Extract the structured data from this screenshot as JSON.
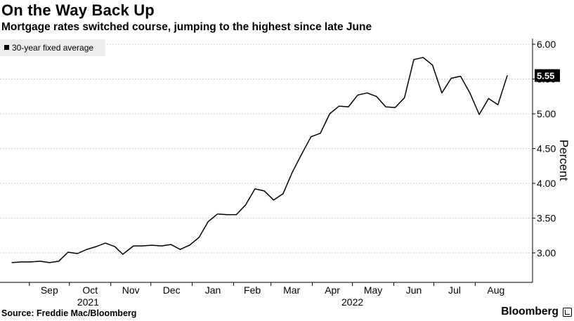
{
  "header": {
    "title": "On the Way Back Up",
    "subtitle": "Mortgage rates switched course, jumping to the highest since late June"
  },
  "footer": {
    "source": "Source: Freddie Mac/Bloomberg",
    "brand": "Bloomberg"
  },
  "colors": {
    "line": "#000000",
    "grid": "#cfcfcf",
    "legend_bg": "#ececec",
    "label_bg": "#000000",
    "label_text": "#ffffff"
  },
  "chart_data": {
    "type": "line",
    "title": "On the Way Back Up",
    "subtitle": "Mortgage rates switched course, jumping to the highest since late June",
    "ylabel": "Percent",
    "y_axis_position": "right",
    "ylim": [
      2.6,
      6.1
    ],
    "y_ticks": [
      "3.00",
      "3.50",
      "4.00",
      "4.50",
      "5.00",
      "5.50",
      "6.00"
    ],
    "grid": true,
    "legend_placement": "top-left",
    "x_ticks": [
      {
        "label": "Sep",
        "date": "2021-09-01"
      },
      {
        "label": "Oct",
        "date": "2021-10-01"
      },
      {
        "label": "Nov",
        "date": "2021-11-01"
      },
      {
        "label": "Dec",
        "date": "2021-12-01"
      },
      {
        "label": "Jan",
        "date": "2022-01-01"
      },
      {
        "label": "Feb",
        "date": "2022-02-01"
      },
      {
        "label": "Mar",
        "date": "2022-03-01"
      },
      {
        "label": "Apr",
        "date": "2022-04-01"
      },
      {
        "label": "May",
        "date": "2022-05-01"
      },
      {
        "label": "Jun",
        "date": "2022-06-01"
      },
      {
        "label": "Jul",
        "date": "2022-07-01"
      },
      {
        "label": "Aug",
        "date": "2022-08-01"
      }
    ],
    "year_labels": [
      {
        "label": "2021",
        "date": "2021-10-15"
      },
      {
        "label": "2022",
        "date": "2022-05-01"
      }
    ],
    "last_value_label": "5.55",
    "series": [
      {
        "name": "30-year fixed average",
        "color": "#000000",
        "x": [
          "2021-08-19",
          "2021-08-26",
          "2021-09-02",
          "2021-09-09",
          "2021-09-16",
          "2021-09-23",
          "2021-09-30",
          "2021-10-07",
          "2021-10-14",
          "2021-10-21",
          "2021-10-28",
          "2021-11-04",
          "2021-11-10",
          "2021-11-18",
          "2021-11-24",
          "2021-12-02",
          "2021-12-09",
          "2021-12-16",
          "2021-12-23",
          "2021-12-30",
          "2022-01-06",
          "2022-01-13",
          "2022-01-20",
          "2022-01-27",
          "2022-02-03",
          "2022-02-10",
          "2022-02-17",
          "2022-02-24",
          "2022-03-03",
          "2022-03-10",
          "2022-03-17",
          "2022-03-24",
          "2022-03-31",
          "2022-04-07",
          "2022-04-14",
          "2022-04-21",
          "2022-04-28",
          "2022-05-05",
          "2022-05-12",
          "2022-05-19",
          "2022-05-26",
          "2022-06-02",
          "2022-06-09",
          "2022-06-16",
          "2022-06-23",
          "2022-06-30",
          "2022-07-07",
          "2022-07-14",
          "2022-07-21",
          "2022-07-28",
          "2022-08-04",
          "2022-08-11",
          "2022-08-18",
          "2022-08-25"
        ],
        "values": [
          2.86,
          2.87,
          2.87,
          2.88,
          2.86,
          2.88,
          3.01,
          2.99,
          3.05,
          3.09,
          3.14,
          3.09,
          2.98,
          3.1,
          3.1,
          3.11,
          3.1,
          3.12,
          3.05,
          3.11,
          3.22,
          3.45,
          3.56,
          3.55,
          3.55,
          3.69,
          3.92,
          3.89,
          3.76,
          3.85,
          4.16,
          4.42,
          4.67,
          4.72,
          5.0,
          5.11,
          5.1,
          5.27,
          5.3,
          5.25,
          5.1,
          5.09,
          5.23,
          5.78,
          5.81,
          5.7,
          5.3,
          5.51,
          5.54,
          5.3,
          4.99,
          5.22,
          5.13,
          5.55
        ]
      }
    ]
  }
}
